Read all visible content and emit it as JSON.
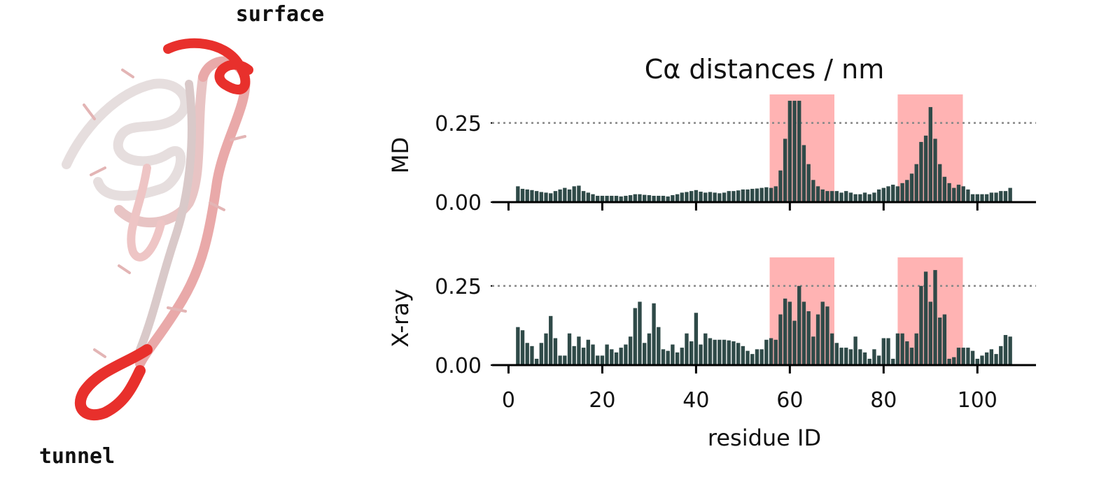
{
  "annotations": [
    "surface",
    "tunnel"
  ],
  "chart_data": [
    {
      "type": "bar",
      "title": "Cα distances / nm",
      "ylabel": "MD",
      "color": "#2f4a48",
      "x": [
        2,
        3,
        4,
        5,
        6,
        7,
        8,
        9,
        10,
        11,
        12,
        13,
        14,
        15,
        16,
        17,
        18,
        19,
        20,
        21,
        22,
        23,
        24,
        25,
        26,
        27,
        28,
        29,
        30,
        31,
        32,
        33,
        34,
        35,
        36,
        37,
        38,
        39,
        40,
        41,
        42,
        43,
        44,
        45,
        46,
        47,
        48,
        49,
        50,
        51,
        52,
        53,
        54,
        55,
        56,
        57,
        58,
        59,
        60,
        61,
        62,
        63,
        64,
        65,
        66,
        67,
        68,
        69,
        70,
        71,
        72,
        73,
        74,
        75,
        76,
        77,
        78,
        79,
        80,
        81,
        82,
        83,
        84,
        85,
        86,
        87,
        88,
        89,
        90,
        91,
        92,
        93,
        94,
        95,
        96,
        97,
        98,
        99,
        100,
        101,
        102,
        103,
        104,
        105,
        106,
        107
      ],
      "values": [
        0.05,
        0.042,
        0.04,
        0.038,
        0.035,
        0.032,
        0.03,
        0.028,
        0.035,
        0.04,
        0.045,
        0.04,
        0.05,
        0.052,
        0.035,
        0.03,
        0.025,
        0.02,
        0.02,
        0.02,
        0.02,
        0.02,
        0.018,
        0.02,
        0.022,
        0.025,
        0.025,
        0.023,
        0.022,
        0.02,
        0.02,
        0.02,
        0.018,
        0.022,
        0.025,
        0.03,
        0.032,
        0.035,
        0.038,
        0.033,
        0.03,
        0.032,
        0.03,
        0.028,
        0.03,
        0.035,
        0.035,
        0.037,
        0.04,
        0.04,
        0.042,
        0.043,
        0.045,
        0.047,
        0.045,
        0.05,
        0.1,
        0.2,
        0.32,
        0.32,
        0.32,
        0.18,
        0.12,
        0.07,
        0.05,
        0.04,
        0.035,
        0.035,
        0.035,
        0.03,
        0.035,
        0.03,
        0.025,
        0.025,
        0.03,
        0.025,
        0.03,
        0.04,
        0.045,
        0.05,
        0.055,
        0.05,
        0.06,
        0.07,
        0.09,
        0.12,
        0.19,
        0.21,
        0.3,
        0.2,
        0.12,
        0.08,
        0.06,
        0.045,
        0.055,
        0.05,
        0.04,
        0.025,
        0.025,
        0.025,
        0.025,
        0.03,
        0.03,
        0.035,
        0.035,
        0.045
      ],
      "xlim": [
        -3.5,
        112.5
      ],
      "xticks": [
        0,
        20,
        40,
        60,
        80,
        100
      ],
      "ylim": [
        0,
        0.34
      ],
      "yticks": [
        {
          "value": 0,
          "label": "0.00"
        },
        0.25
      ],
      "reference_line": 0.25,
      "highlight_spans": [
        [
          55.7,
          69.5
        ],
        [
          83,
          96.9
        ]
      ],
      "highlight_color": "#ffb3b3"
    },
    {
      "type": "bar",
      "ylabel": "X-ray",
      "xlabel": "residue ID",
      "color": "#2f4a48",
      "x": [
        2,
        3,
        4,
        5,
        6,
        7,
        8,
        9,
        10,
        11,
        12,
        13,
        14,
        15,
        16,
        17,
        18,
        19,
        20,
        21,
        22,
        23,
        24,
        25,
        26,
        27,
        28,
        29,
        30,
        31,
        32,
        33,
        34,
        35,
        36,
        37,
        38,
        39,
        40,
        41,
        42,
        43,
        44,
        45,
        46,
        47,
        48,
        49,
        50,
        51,
        52,
        53,
        54,
        55,
        56,
        57,
        58,
        59,
        60,
        61,
        62,
        63,
        64,
        65,
        66,
        67,
        68,
        69,
        70,
        71,
        72,
        73,
        74,
        75,
        76,
        77,
        78,
        79,
        80,
        81,
        82,
        83,
        84,
        85,
        86,
        87,
        88,
        89,
        90,
        91,
        92,
        93,
        94,
        95,
        96,
        97,
        98,
        99,
        100,
        101,
        102,
        103,
        104,
        105,
        106,
        107
      ],
      "values": [
        0.12,
        0.11,
        0.07,
        0.06,
        0.02,
        0.07,
        0.1,
        0.155,
        0.085,
        0.03,
        0.03,
        0.1,
        0.06,
        0.09,
        0.055,
        0.08,
        0.065,
        0.03,
        0.03,
        0.065,
        0.05,
        0.04,
        0.055,
        0.065,
        0.09,
        0.18,
        0.2,
        0.07,
        0.1,
        0.195,
        0.12,
        0.05,
        0.045,
        0.065,
        0.04,
        0.055,
        0.1,
        0.075,
        0.165,
        0.065,
        0.1,
        0.085,
        0.08,
        0.08,
        0.08,
        0.078,
        0.075,
        0.07,
        0.06,
        0.045,
        0.035,
        0.05,
        0.05,
        0.08,
        0.085,
        0.08,
        0.16,
        0.21,
        0.2,
        0.14,
        0.25,
        0.2,
        0.17,
        0.09,
        0.16,
        0.2,
        0.185,
        0.1,
        0.07,
        0.055,
        0.055,
        0.05,
        0.09,
        0.05,
        0.04,
        0.02,
        0.05,
        0.03,
        0.085,
        0.085,
        0.02,
        0.1,
        0.1,
        0.075,
        0.055,
        0.1,
        0.25,
        0.295,
        0.2,
        0.3,
        0.15,
        0.16,
        0.02,
        0.025,
        0.055,
        0.055,
        0.055,
        0.045,
        0.02,
        0.03,
        0.04,
        0.05,
        0.035,
        0.06,
        0.095,
        0.09
      ],
      "xlim": [
        -3.5,
        112.5
      ],
      "xticks": [
        0,
        20,
        40,
        60,
        80,
        100
      ],
      "ylim": [
        0,
        0.34
      ],
      "yticks": [
        {
          "value": 0,
          "label": "0.00"
        },
        0.25
      ],
      "reference_line": 0.25,
      "highlight_spans": [
        [
          55.7,
          69.5
        ],
        [
          83,
          96.9
        ]
      ],
      "highlight_color": "#ffb3b3"
    }
  ]
}
